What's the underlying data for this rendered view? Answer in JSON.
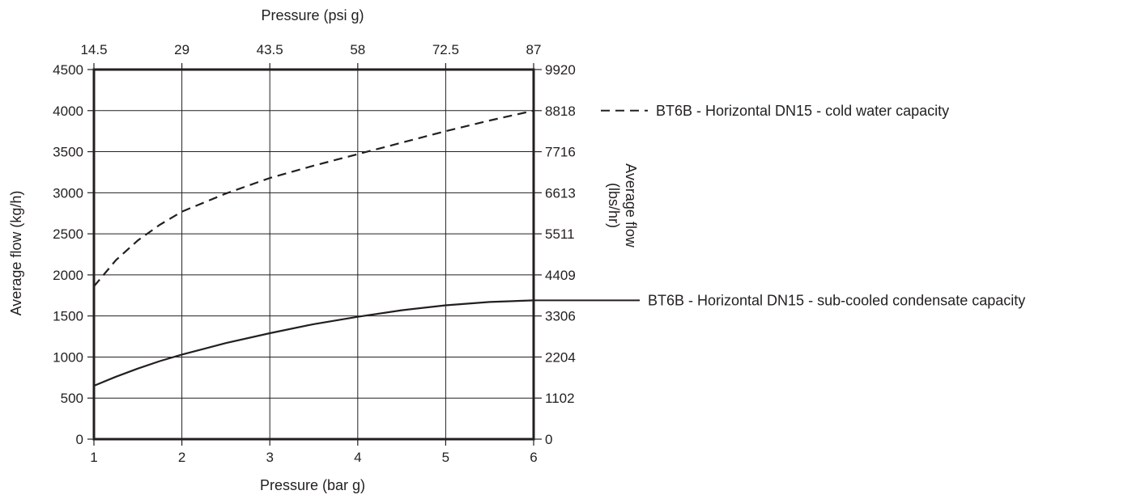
{
  "chart_data": {
    "type": "line",
    "title": "",
    "x": [
      1,
      1.25,
      1.5,
      1.75,
      2,
      2.5,
      3,
      3.5,
      4,
      4.5,
      5,
      5.5,
      6
    ],
    "series": [
      {
        "name": "BT6B - Horizontal DN15 - cold water capacity",
        "style": "dashed",
        "values": [
          1860,
          2180,
          2420,
          2610,
          2770,
          2990,
          3180,
          3330,
          3470,
          3610,
          3750,
          3880,
          4000
        ]
      },
      {
        "name": "BT6B - Horizontal DN15 - sub-cooled condensate capacity",
        "style": "solid",
        "values": [
          650,
          760,
          860,
          950,
          1030,
          1170,
          1290,
          1400,
          1490,
          1570,
          1630,
          1670,
          1690
        ]
      }
    ],
    "xlabel": "Pressure (bar g)",
    "ylabel": "Average flow (kg/h)",
    "xlim": [
      1,
      6
    ],
    "ylim": [
      0,
      4500
    ],
    "x_ticks": [
      1,
      2,
      3,
      4,
      5,
      6
    ],
    "y_ticks": [
      0,
      500,
      1000,
      1500,
      2000,
      2500,
      3000,
      3500,
      4000,
      4500
    ],
    "x2label": "Pressure (psi g)",
    "x2_tick_labels": [
      "14.5",
      "29",
      "43.5",
      "58",
      "72.5",
      "87"
    ],
    "y2label_line1": "Average flow",
    "y2label_line2": "(lbs/hr)",
    "y2_tick_labels": [
      "0",
      "1102",
      "2204",
      "3306",
      "4409",
      "5511",
      "6613",
      "7716",
      "8818",
      "9920"
    ],
    "grid": true,
    "legend": "right"
  },
  "colors": {
    "ink": "#231f20",
    "background": "#ffffff"
  }
}
